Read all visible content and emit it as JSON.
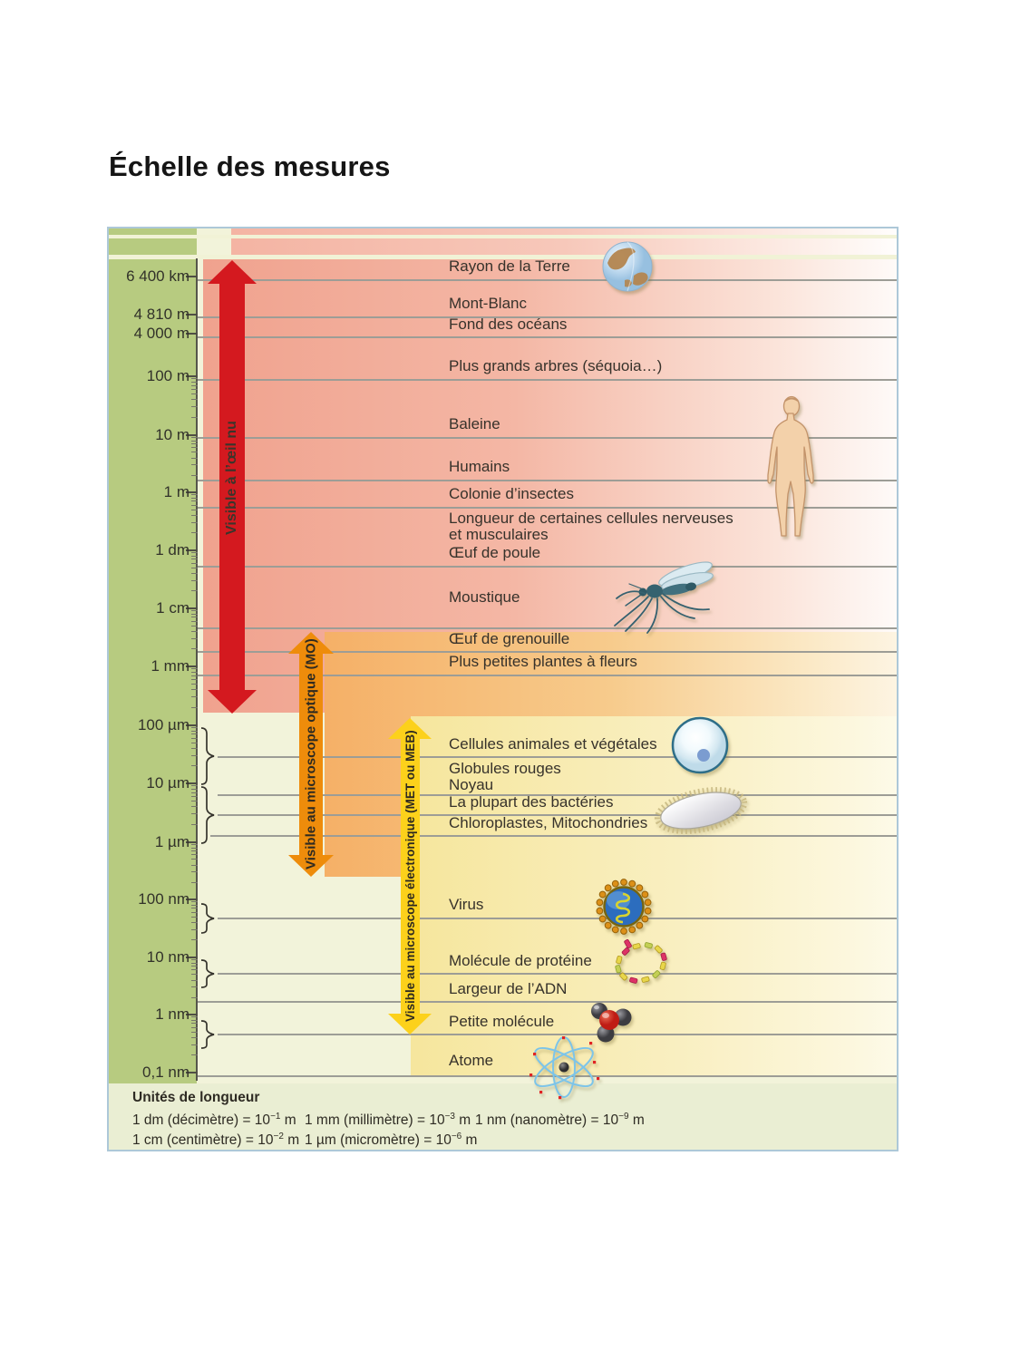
{
  "title": "Échelle des mesures",
  "scale": {
    "ticks": [
      "6 400 km",
      "4 810 m",
      "4 000 m",
      "100 m",
      "10 m",
      "1 m",
      "1 dm",
      "1 cm",
      "1 mm",
      "100 µm",
      "10 µm",
      "1 µm",
      "100 nm",
      "10 nm",
      "1 nm",
      "0,1 nm"
    ]
  },
  "arrows": {
    "naked_eye": "Visible à l’œil nu",
    "optical": "Visible au microscope optique (MO)",
    "electron": "Visible au microscope électronique (MET ou MEB)"
  },
  "items": [
    {
      "label": "Rayon de la Terre"
    },
    {
      "label": "Mont-Blanc"
    },
    {
      "label": "Fond des océans"
    },
    {
      "label": "Plus grands arbres (séquoia…)"
    },
    {
      "label": "Baleine"
    },
    {
      "label": "Humains"
    },
    {
      "label": "Colonie d’insectes"
    },
    {
      "label": "Longueur de certaines cellules nerveuses",
      "label2": "et musculaires"
    },
    {
      "label": "Œuf de poule"
    },
    {
      "label": "Moustique"
    },
    {
      "label": "Œuf de grenouille"
    },
    {
      "label": "Plus petites plantes à fleurs"
    },
    {
      "label": "Cellules animales et végétales"
    },
    {
      "label": "Globules rouges",
      "label2": "Noyau"
    },
    {
      "label": "La plupart des bactéries"
    },
    {
      "label": "Chloroplastes, Mitochondries"
    },
    {
      "label": "Virus"
    },
    {
      "label": "Molécule de protéine"
    },
    {
      "label": "Largeur de l’ADN"
    },
    {
      "label": "Petite molécule"
    },
    {
      "label": "Atome"
    }
  ],
  "legend": {
    "title": "Unités de longueur",
    "conversions": [
      {
        "pre": "1 dm (décimètre) = 10",
        "exp": "−1",
        "post": " m"
      },
      {
        "pre": "1 cm (centimètre) = 10",
        "exp": "−2",
        "post": " m"
      },
      {
        "pre": "1 mm (millimètre) = 10",
        "exp": "−3",
        "post": " m"
      },
      {
        "pre": "1 µm (micromètre) = 10",
        "exp": "−6",
        "post": " m"
      },
      {
        "pre": "1 nm (nanomètre) = 10",
        "exp": "−9",
        "post": " m"
      }
    ]
  },
  "icons": [
    "earth-icon",
    "human-icon",
    "mosquito-icon",
    "cell-icon",
    "bacterium-icon",
    "virus-icon",
    "protein-icon",
    "water-molecule-icon",
    "atom-icon"
  ],
  "colors": {
    "green_band": "#b7cb80",
    "salmon_zone": "#f0a28e",
    "orange_zone": "#f5b067",
    "yellow_zone": "#f6e69d",
    "red_arrow": "#d4191f",
    "orange_arrow": "#ee8c0b",
    "yellow_arrow": "#fcd11b",
    "frame_border": "#adc8d8",
    "legend_bg": "#eaeed3"
  }
}
